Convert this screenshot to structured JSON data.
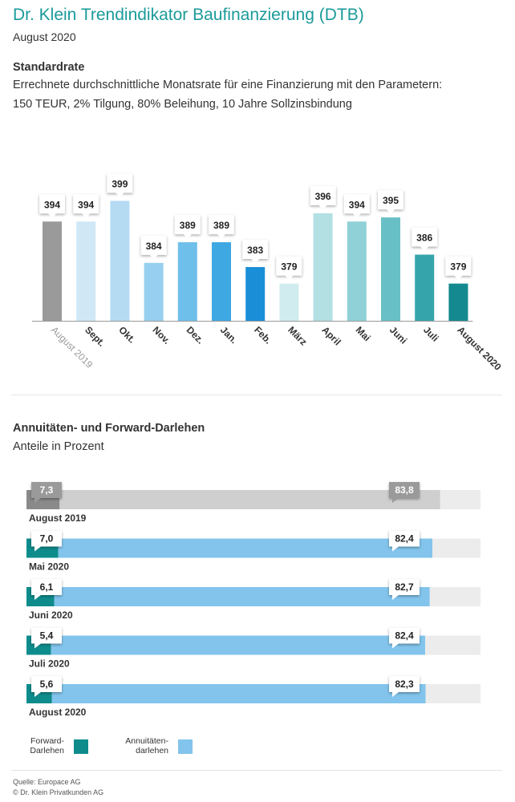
{
  "header": {
    "title": "Dr. Klein Trendindikator Baufinanzierung (DTB)",
    "subtitle": "August 2020"
  },
  "section1": {
    "heading": "Standardrate",
    "line1": "Errechnete durchschnittliche Monatsrate für eine Finanzierung mit den Parametern:",
    "line2": "150 TEUR, 2% Tilgung, 80% Beleihung, 10 Jahre Sollzinsbindung"
  },
  "section2": {
    "heading": "Annuitäten- und Forward-Darlehen",
    "subheading": "Anteile in Prozent"
  },
  "legend": {
    "forward": "Forward-\nDarlehen",
    "annuity": "Annuitäten-\ndarlehen"
  },
  "footer": {
    "source": "Quelle: Europace AG",
    "copyright": "© Dr. Klein Privatkunden AG"
  },
  "colors": {
    "accent": "#1c9a9a",
    "forward": "#0e8c8c",
    "annuity": "#82c4ec",
    "track": "#ececec",
    "previous_year_dark": "#8a8a8a",
    "previous_year_light": "#cfcfcf"
  },
  "chart_data": [
    {
      "type": "bar",
      "title": "Standardrate",
      "categories": [
        "August 2019",
        "Sept.",
        "Okt.",
        "Nov.",
        "Dez.",
        "Jan.",
        "Feb.",
        "März",
        "April",
        "Mai",
        "Juni",
        "Juli",
        "August 2020"
      ],
      "values": [
        394,
        394,
        399,
        384,
        389,
        389,
        383,
        379,
        396,
        394,
        395,
        386,
        379
      ],
      "bar_colors": [
        "#9a9a9a",
        "#d0e8f6",
        "#b4dbf2",
        "#96cfef",
        "#6fbfeb",
        "#3ea8e3",
        "#1a8fd8",
        "#d0ecef",
        "#b2e0e3",
        "#8fd1d6",
        "#68c0c6",
        "#35a5ab",
        "#14898f"
      ],
      "ylim": [
        370,
        402
      ],
      "xlabel": "",
      "ylabel": "",
      "grid": false
    },
    {
      "type": "bar",
      "orientation": "horizontal",
      "title": "Annuitäten- und Forward-Darlehen",
      "subtitle": "Anteile in Prozent",
      "categories": [
        "August 2019",
        "Mai 2020",
        "Juni 2020",
        "Juli 2020",
        "August 2020"
      ],
      "series": [
        {
          "name": "Forward-Darlehen",
          "values": [
            7.3,
            7.0,
            6.1,
            5.4,
            5.6
          ]
        },
        {
          "name": "Annuitätendarlehen",
          "values": [
            83.8,
            82.4,
            82.7,
            82.4,
            82.3
          ]
        }
      ],
      "value_labels": {
        "forward": [
          "7,3",
          "7,0",
          "6,1",
          "5,4",
          "5,6"
        ],
        "annuity": [
          "83,8",
          "82,4",
          "82,7",
          "82,4",
          "82,3"
        ]
      },
      "xlim": [
        0,
        100
      ],
      "legend": "bottom-left"
    }
  ]
}
